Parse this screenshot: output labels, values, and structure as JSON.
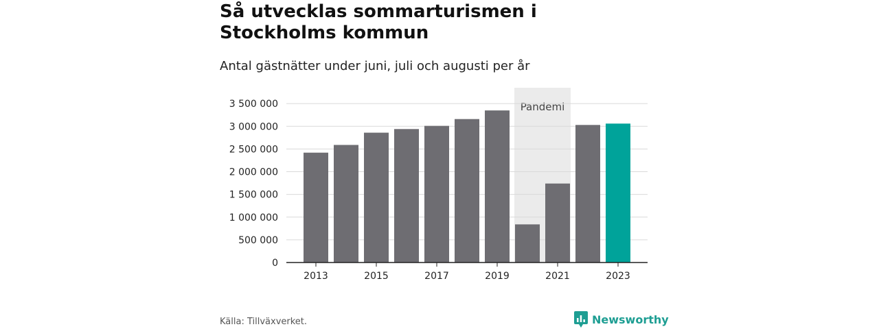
{
  "header": {
    "title": "Så utvecklas sommarturismen i Stockholms kommun",
    "subtitle": "Antal gästnätter under juni, juli och augusti per år"
  },
  "footer": {
    "source": "Källa: Tillväxverket.",
    "brand": "Newsworthy",
    "brand_icon": "chart-bubble-icon"
  },
  "colors": {
    "bar": "#6e6d72",
    "highlight": "#00a39a",
    "pandemic_band": "#ebebeb",
    "grid": "#d9d9d9",
    "axis": "#222222",
    "brand": "#1e9e93"
  },
  "chart_data": {
    "type": "bar",
    "title": "Så utvecklas sommarturismen i Stockholms kommun",
    "subtitle": "Antal gästnätter under juni, juli och augusti per år",
    "categories": [
      "2013",
      "2014",
      "2015",
      "2016",
      "2017",
      "2018",
      "2019",
      "2020",
      "2021",
      "2022",
      "2023"
    ],
    "values": [
      2420000,
      2590000,
      2860000,
      2940000,
      3010000,
      3160000,
      3350000,
      840000,
      1740000,
      3030000,
      3060000
    ],
    "highlight_category": "2023",
    "x_tick_labels": [
      "2013",
      "2015",
      "2017",
      "2019",
      "2021",
      "2023"
    ],
    "y_ticks": [
      0,
      500000,
      1000000,
      1500000,
      2000000,
      2500000,
      3000000,
      3500000
    ],
    "y_tick_labels": [
      "0",
      "500 000",
      "1 000 000",
      "1 500 000",
      "2 000 000",
      "2 500 000",
      "3 000 000",
      "3 500 000"
    ],
    "ylim": [
      0,
      3850000
    ],
    "xlabel": "",
    "ylabel": "",
    "grid": true,
    "annotations": [
      {
        "label": "Pandemi",
        "from": "2020",
        "to": "2021"
      }
    ]
  }
}
